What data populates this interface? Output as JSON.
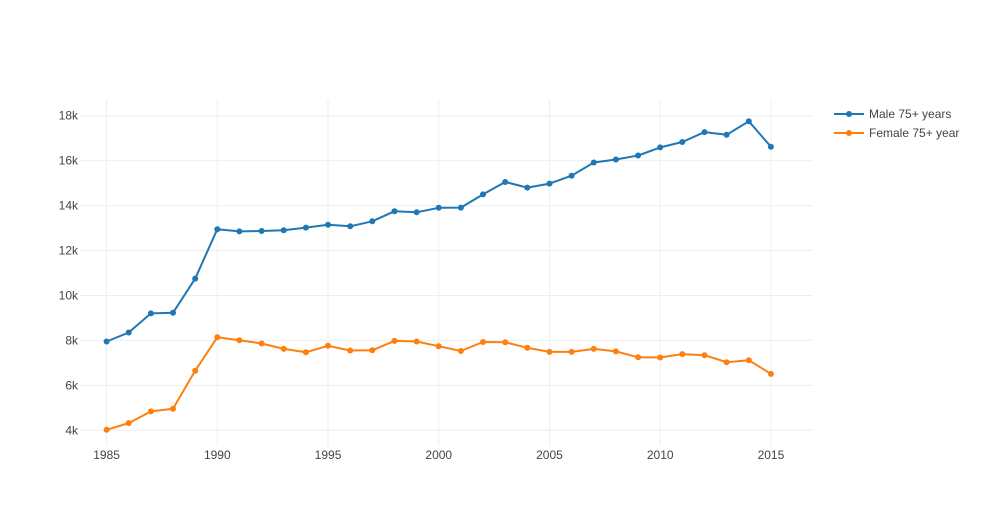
{
  "chart_data": {
    "type": "line",
    "title": "",
    "xlabel": "",
    "ylabel": "",
    "grid": true,
    "legend_position": "top-right",
    "xlim": [
      1983.8,
      2016.9
    ],
    "ylim": [
      3300,
      18700
    ],
    "xticks": [
      {
        "value": 1985,
        "label": "1985"
      },
      {
        "value": 1990,
        "label": "1990"
      },
      {
        "value": 1995,
        "label": "1995"
      },
      {
        "value": 2000,
        "label": "2000"
      },
      {
        "value": 2005,
        "label": "2005"
      },
      {
        "value": 2010,
        "label": "2010"
      },
      {
        "value": 2015,
        "label": "2015"
      }
    ],
    "yticks": [
      {
        "value": 4000,
        "label": "4k"
      },
      {
        "value": 6000,
        "label": "6k"
      },
      {
        "value": 8000,
        "label": "8k"
      },
      {
        "value": 10000,
        "label": "10k"
      },
      {
        "value": 12000,
        "label": "12k"
      },
      {
        "value": 14000,
        "label": "14k"
      },
      {
        "value": 16000,
        "label": "16k"
      },
      {
        "value": 18000,
        "label": "18k"
      }
    ],
    "x": [
      1985,
      1986,
      1987,
      1988,
      1989,
      1990,
      1991,
      1992,
      1993,
      1994,
      1995,
      1996,
      1997,
      1998,
      1999,
      2000,
      2001,
      2002,
      2003,
      2004,
      2005,
      2006,
      2007,
      2008,
      2009,
      2010,
      2011,
      2012,
      2013,
      2014,
      2015
    ],
    "series": [
      {
        "name": "Male 75+ years",
        "color": "#1f77b4",
        "values": [
          7950,
          8350,
          9200,
          9230,
          10750,
          12950,
          12850,
          12870,
          12900,
          13020,
          13150,
          13080,
          13300,
          13750,
          13700,
          13900,
          13910,
          14500,
          15050,
          14800,
          14980,
          15330,
          15920,
          16050,
          16230,
          16590,
          16830,
          17270,
          17150,
          17750,
          16620
        ]
      },
      {
        "name": "Female 75+ year",
        "color": "#ff7f0e",
        "values": [
          4020,
          4320,
          4840,
          4960,
          6650,
          8140,
          8010,
          7860,
          7620,
          7470,
          7760,
          7550,
          7560,
          7980,
          7950,
          7740,
          7530,
          7930,
          7920,
          7670,
          7490,
          7490,
          7620,
          7510,
          7250,
          7240,
          7390,
          7340,
          7030,
          7120,
          6510
        ]
      }
    ]
  }
}
